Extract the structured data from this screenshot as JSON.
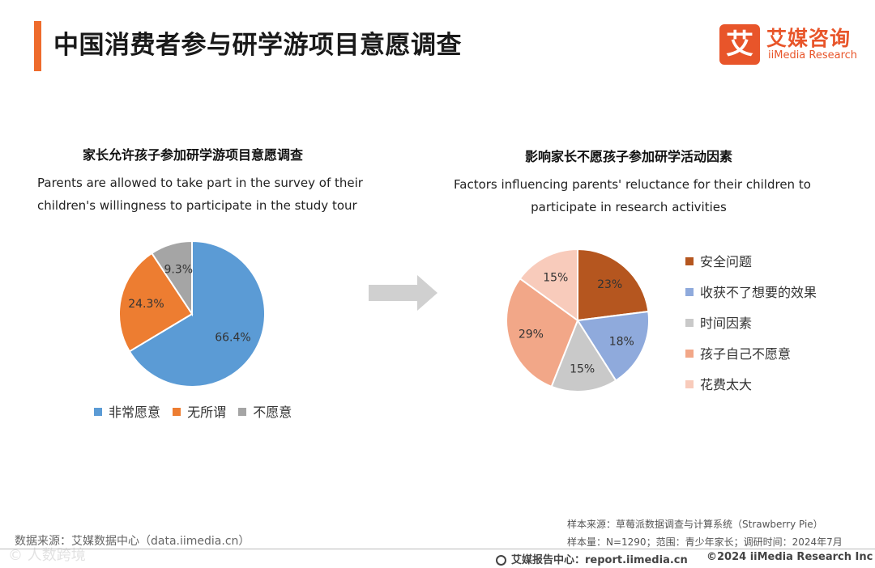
{
  "header": {
    "title": "中国消费者参与研学游项目意愿调查",
    "logo": {
      "mark": "艾",
      "cn": "艾媒咨询",
      "en": "iiMedia Research"
    }
  },
  "colors": {
    "accent": "#ee6b2c",
    "arrow": "#d0d0d0"
  },
  "chart_data": [
    {
      "type": "pie",
      "title": "家长允许孩子参加研学游项目意愿调查",
      "subtitle_lines": [
        "Parents are allowed to take part in the survey of their",
        "children's willingness to participate in the study tour"
      ],
      "categories": [
        "非常愿意",
        "无所谓",
        "不愿意"
      ],
      "values": [
        66.4,
        24.3,
        9.3
      ],
      "labels": [
        "66.4%",
        "24.3%",
        "9.3%"
      ],
      "colors": [
        "#5b9bd5",
        "#ed7d31",
        "#a5a5a5"
      ],
      "legend": "bottom"
    },
    {
      "type": "pie",
      "title": "影响家长不愿孩子参加研学活动因素",
      "subtitle_lines": [
        "Factors influencing parents' reluctance for their children to",
        "participate in research activities"
      ],
      "categories": [
        "安全问题",
        "收获不了想要的效果",
        "时间因素",
        "孩子自己不愿意",
        "花费太大"
      ],
      "values": [
        23,
        18,
        15,
        29,
        15
      ],
      "labels": [
        "23%",
        "18%",
        "15%",
        "29%",
        "15%"
      ],
      "colors": [
        "#b5561f",
        "#8faadc",
        "#c9c9c9",
        "#f2a788",
        "#f8cbbb"
      ],
      "legend": "right"
    }
  ],
  "footer": {
    "source_left": "数据来源：艾媒数据中心（data.iimedia.cn）",
    "sample_source": "样本来源：草莓派数据调查与计算系统（Strawberry Pie）",
    "sample_info": "样本量：N=1290；范围：青少年家长；调研时间：2024年7月",
    "report_center": "艾媒报告中心：report.iimedia.cn",
    "copyright": "©2024  iiMedia Research  Inc",
    "watermark": "© 人数跨境"
  }
}
